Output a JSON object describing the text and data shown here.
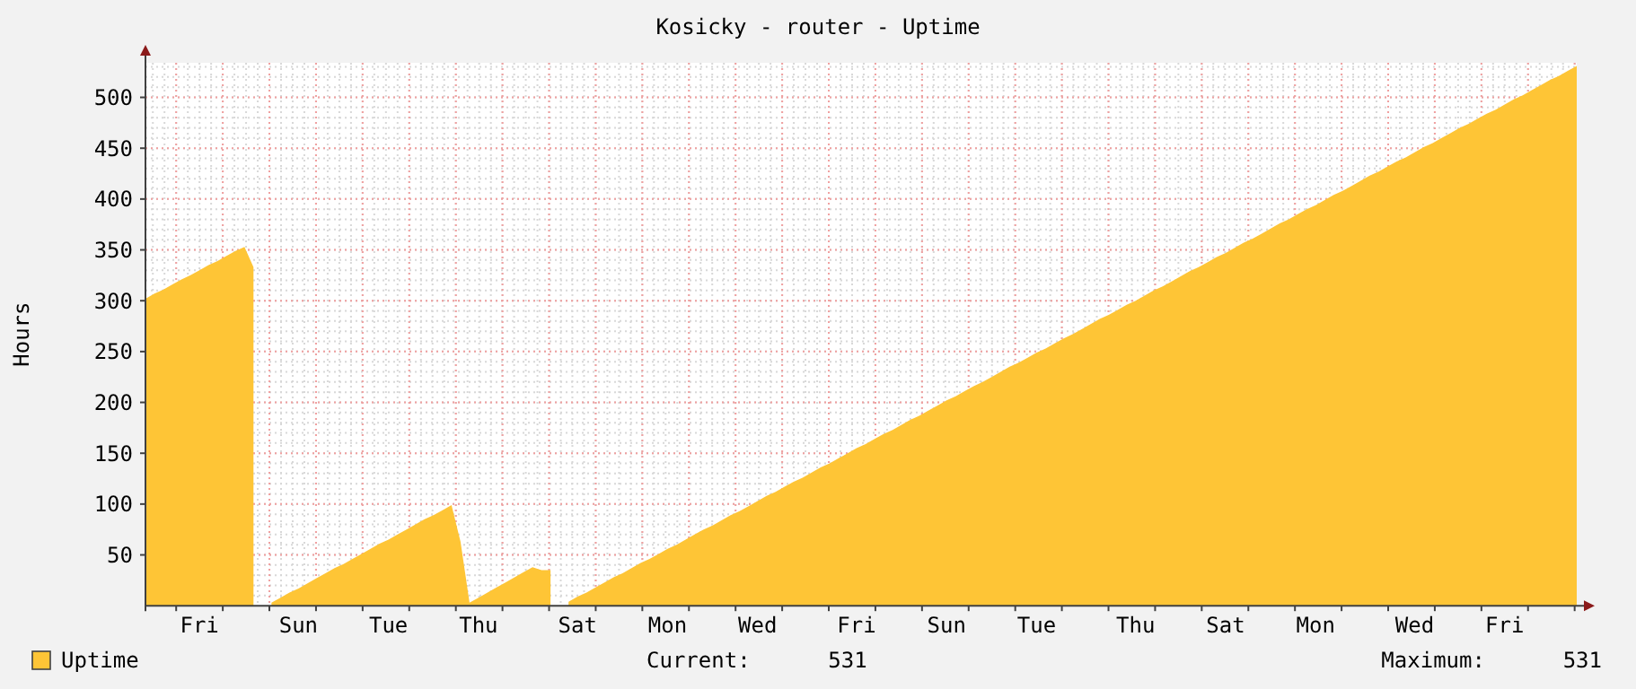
{
  "chart_data": {
    "type": "area",
    "title": "Kosicky - router - Uptime",
    "ylabel": "Hours",
    "categories": [
      null,
      null,
      null,
      null,
      null,
      null,
      "Fri",
      null,
      null,
      null,
      null,
      null,
      null,
      null,
      null,
      null,
      null,
      "Sun",
      null,
      null,
      null,
      null,
      null,
      null,
      null,
      null,
      null,
      "Tue",
      null,
      null,
      null,
      null,
      null,
      null,
      null,
      null,
      null,
      "Thu",
      null,
      null,
      null,
      null,
      null,
      null,
      null,
      null,
      null,
      null,
      "Sat",
      null,
      null,
      null,
      null,
      null,
      null,
      null,
      null,
      null,
      "Mon",
      null,
      null,
      null,
      null,
      null,
      null,
      null,
      null,
      null,
      "Wed",
      null,
      null,
      null,
      null,
      null,
      null,
      null,
      null,
      null,
      null,
      "Fri",
      null,
      null,
      null,
      null,
      null,
      null,
      null,
      null,
      null,
      "Sun",
      null,
      null,
      null,
      null,
      null,
      null,
      null,
      null,
      null,
      "Tue",
      null,
      null,
      null,
      null,
      null,
      null,
      null,
      null,
      null,
      null,
      "Thu",
      null,
      null,
      null,
      null,
      null,
      null,
      null,
      null,
      null,
      "Sat",
      null,
      null,
      null,
      null,
      null,
      null,
      null,
      null,
      null,
      "Mon",
      null,
      null,
      null,
      null,
      null,
      null,
      null,
      null,
      null,
      null,
      "Wed",
      null,
      null,
      null,
      null,
      null,
      null,
      null,
      null,
      null,
      "Fri",
      null,
      null,
      null,
      null,
      null,
      null,
      null,
      null
    ],
    "ylim": [
      0,
      534
    ],
    "yticks": [
      50,
      100,
      150,
      200,
      250,
      300,
      350,
      400,
      450,
      500
    ],
    "grid": true,
    "legend": "bottom left",
    "series": [
      {
        "name": "Uptime",
        "color": "#fec536",
        "values": [
          302,
          307,
          311,
          316,
          321,
          325,
          330,
          335,
          339,
          344,
          349,
          353,
          333,
          null,
          3,
          8,
          13,
          17,
          22,
          27,
          32,
          37,
          41,
          46,
          51,
          56,
          61,
          65,
          70,
          75,
          80,
          85,
          89,
          94,
          99,
          63,
          3,
          8,
          13,
          18,
          23,
          28,
          33,
          38,
          35,
          35,
          null,
          4,
          9,
          13,
          18,
          23,
          28,
          32,
          37,
          42,
          46,
          51,
          56,
          60,
          65,
          70,
          75,
          79,
          84,
          89,
          93,
          98,
          103,
          108,
          112,
          117,
          122,
          126,
          131,
          136,
          140,
          145,
          150,
          155,
          159,
          164,
          169,
          173,
          178,
          183,
          187,
          192,
          197,
          202,
          206,
          211,
          216,
          220,
          225,
          230,
          235,
          239,
          244,
          249,
          253,
          258,
          263,
          267,
          272,
          277,
          282,
          286,
          291,
          296,
          300,
          305,
          310,
          314,
          319,
          324,
          329,
          333,
          338,
          343,
          347,
          352,
          357,
          361,
          366,
          371,
          376,
          380,
          385,
          390,
          394,
          399,
          404,
          408,
          413,
          418,
          423,
          427,
          432,
          437,
          441,
          446,
          451,
          455,
          460,
          465,
          470,
          474,
          479,
          484,
          488,
          493,
          498,
          502,
          507,
          512,
          517,
          521,
          526,
          531
        ]
      }
    ],
    "annotations": [
      "Current:      531",
      "Maximum:      531"
    ]
  }
}
